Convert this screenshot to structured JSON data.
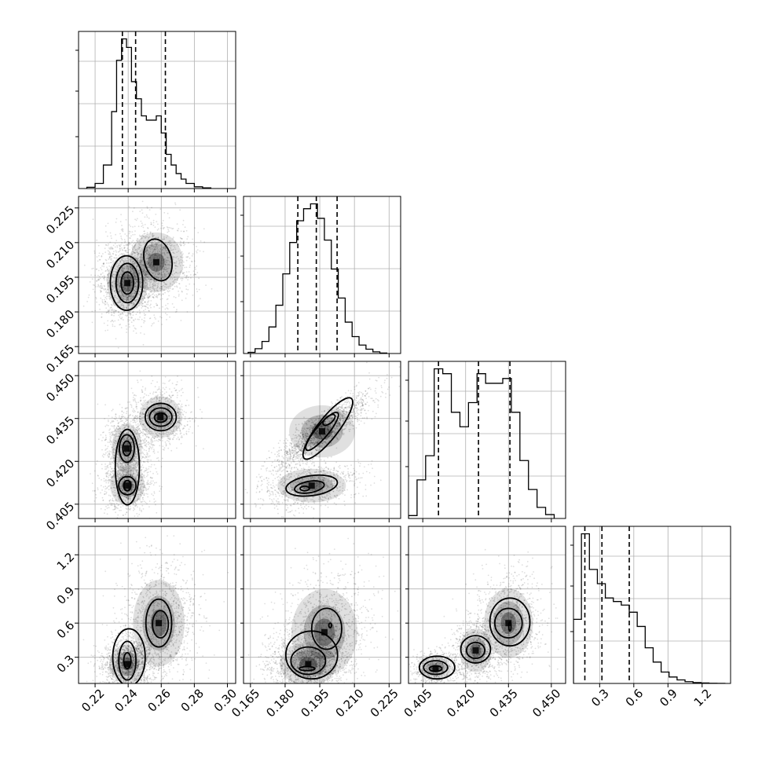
{
  "chart_data": {
    "type": "corner",
    "title": "",
    "parameters": [
      {
        "index": 0,
        "range": [
          0.21,
          0.305
        ],
        "ticks": [
          0.22,
          0.24,
          0.26,
          0.28,
          0.3
        ],
        "tick_labels": [
          "0.22",
          "0.24",
          "0.26",
          "0.28",
          "0.30"
        ],
        "quantiles": [
          0.2365,
          0.2445,
          0.2625
        ],
        "histogram": {
          "bin_edges": [
            0.215,
            0.22,
            0.225,
            0.23,
            0.233,
            0.236,
            0.239,
            0.242,
            0.245,
            0.248,
            0.251,
            0.254,
            0.257,
            0.26,
            0.263,
            0.266,
            0.269,
            0.272,
            0.275,
            0.28,
            0.285,
            0.29
          ],
          "counts": [
            0.3,
            1.2,
            5.5,
            18,
            30,
            35,
            33,
            25,
            21,
            17,
            16,
            16,
            17,
            13,
            8,
            5.5,
            3.5,
            2.2,
            1.2,
            0.4,
            0.15
          ]
        }
      },
      {
        "index": 1,
        "range": [
          0.162,
          0.23
        ],
        "ticks": [
          0.165,
          0.18,
          0.195,
          0.21,
          0.225
        ],
        "tick_labels": [
          "0.165",
          "0.180",
          "0.195",
          "0.210",
          "0.225"
        ],
        "quantiles": [
          0.1855,
          0.1935,
          0.2025
        ],
        "histogram": {
          "bin_edges": [
            0.164,
            0.167,
            0.17,
            0.173,
            0.176,
            0.179,
            0.182,
            0.185,
            0.188,
            0.191,
            0.194,
            0.197,
            0.2,
            0.203,
            0.206,
            0.209,
            0.212,
            0.215,
            0.218,
            0.221,
            0.224
          ],
          "counts": [
            0.5,
            2,
            5,
            11,
            20,
            33,
            46,
            55,
            60,
            62,
            56,
            47,
            35,
            23,
            13,
            7,
            3.5,
            1.8,
            0.7,
            0.2
          ]
        }
      },
      {
        "index": 2,
        "range": [
          0.4,
          0.455
        ],
        "ticks": [
          0.405,
          0.42,
          0.435,
          0.45
        ],
        "tick_labels": [
          "0.405",
          "0.420",
          "0.435",
          "0.450"
        ],
        "quantiles": [
          0.4105,
          0.4245,
          0.4355
        ],
        "histogram": {
          "bin_edges": [
            0.4,
            0.403,
            0.406,
            0.409,
            0.412,
            0.415,
            0.418,
            0.421,
            0.424,
            0.427,
            0.43,
            0.433,
            0.436,
            0.439,
            0.442,
            0.445,
            0.448,
            0.451
          ],
          "counts": [
            0.6,
            8,
            13,
            31,
            30,
            22,
            19,
            24,
            30,
            28,
            28,
            29,
            22,
            12,
            6,
            2.3,
            0.8
          ]
        }
      },
      {
        "index": 3,
        "range": [
          0.07,
          1.45
        ],
        "ticks": [
          0.3,
          0.6,
          0.9,
          1.2
        ],
        "tick_labels": [
          "0.3",
          "0.6",
          "0.9",
          "1.2"
        ],
        "quantiles": [
          0.17,
          0.32,
          0.56
        ],
        "histogram": {
          "bin_edges": [
            0.07,
            0.14,
            0.21,
            0.28,
            0.35,
            0.42,
            0.49,
            0.56,
            0.63,
            0.7,
            0.77,
            0.84,
            0.91,
            0.98,
            1.05,
            1.12,
            1.19,
            1.26,
            1.33,
            1.4
          ],
          "counts": [
            9,
            21,
            16,
            14,
            12,
            11.5,
            11,
            10,
            8,
            5,
            3,
            1.6,
            0.9,
            0.5,
            0.25,
            0.12,
            0.06,
            0.03,
            0.01
          ]
        }
      }
    ],
    "pairs": [
      {
        "x_param": 0,
        "y_param": 1,
        "clusters": [
          {
            "cx": 0.2395,
            "cy": 0.1925,
            "sx": 0.0065,
            "sy": 0.0064,
            "rho": 0.0,
            "weight": 0.58
          },
          {
            "cx": 0.257,
            "cy": 0.2015,
            "sx": 0.0085,
            "sy": 0.0068,
            "rho": -0.15,
            "weight": 0.42
          }
        ],
        "contour_levels": [
          [
            {
              "cx": 0.2395,
              "cy": 0.1925,
              "rx": 0.0038,
              "ry": 0.0048,
              "rot": 0
            }
          ],
          [
            {
              "cx": 0.2395,
              "cy": 0.1925,
              "rx": 0.0068,
              "ry": 0.0085,
              "rot": 0
            }
          ],
          [
            {
              "cx": 0.239,
              "cy": 0.1925,
              "rx": 0.0098,
              "ry": 0.0118,
              "rot": 0
            },
            {
              "cx": 0.258,
              "cy": 0.2025,
              "rx": 0.0082,
              "ry": 0.0092,
              "rot": -15
            }
          ]
        ]
      },
      {
        "x_param": 0,
        "y_param": 2,
        "clusters": [
          {
            "cx": 0.2392,
            "cy": 0.4245,
            "sx": 0.0048,
            "sy": 0.0046,
            "rho": 0.0,
            "weight": 0.35
          },
          {
            "cx": 0.2395,
            "cy": 0.4115,
            "sx": 0.0055,
            "sy": 0.0035,
            "rho": 0.0,
            "weight": 0.32
          },
          {
            "cx": 0.2595,
            "cy": 0.4355,
            "sx": 0.0068,
            "sy": 0.0038,
            "rho": 0.0,
            "weight": 0.33
          }
        ],
        "contour_levels": [
          [
            {
              "cx": 0.2392,
              "cy": 0.4245,
              "rx": 0.0025,
              "ry": 0.0026,
              "rot": 0
            },
            {
              "cx": 0.2395,
              "cy": 0.4115,
              "rx": 0.0022,
              "ry": 0.0018,
              "rot": 0
            },
            {
              "cx": 0.2597,
              "cy": 0.4353,
              "rx": 0.0038,
              "ry": 0.0016,
              "rot": 0
            }
          ],
          [
            {
              "cx": 0.2392,
              "cy": 0.4245,
              "rx": 0.0045,
              "ry": 0.0048,
              "rot": 0
            },
            {
              "cx": 0.2395,
              "cy": 0.4115,
              "rx": 0.0052,
              "ry": 0.0032,
              "rot": 0
            },
            {
              "cx": 0.2597,
              "cy": 0.4355,
              "rx": 0.0068,
              "ry": 0.0032,
              "rot": 0
            }
          ],
          [
            {
              "cx": 0.2395,
              "cy": 0.418,
              "rx": 0.0073,
              "ry": 0.0132,
              "rot": 0
            },
            {
              "cx": 0.2597,
              "cy": 0.4355,
              "rx": 0.0094,
              "ry": 0.0048,
              "rot": 0
            }
          ]
        ]
      },
      {
        "x_param": 1,
        "y_param": 2,
        "clusters": [
          {
            "cx": 0.196,
            "cy": 0.4305,
            "sx": 0.0075,
            "sy": 0.0048,
            "rho": 0.88,
            "weight": 0.68
          },
          {
            "cx": 0.1915,
            "cy": 0.4115,
            "sx": 0.0078,
            "sy": 0.0031,
            "rho": 0.3,
            "weight": 0.32
          }
        ],
        "contour_levels": [
          [
            {
              "cx": 0.199,
              "cy": 0.4345,
              "rx": 0.0032,
              "ry": 0.0012,
              "rot": -40
            },
            {
              "cx": 0.1885,
              "cy": 0.4105,
              "rx": 0.002,
              "ry": 0.0008,
              "rot": 0
            }
          ],
          [
            {
              "cx": 0.196,
              "cy": 0.4305,
              "rx": 0.0105,
              "ry": 0.0022,
              "rot": -50
            },
            {
              "cx": 0.1905,
              "cy": 0.411,
              "rx": 0.0065,
              "ry": 0.002,
              "rot": -10
            }
          ],
          [
            {
              "cx": 0.1985,
              "cy": 0.4315,
              "rx": 0.0165,
              "ry": 0.0036,
              "rot": -52
            },
            {
              "cx": 0.1915,
              "cy": 0.4115,
              "rx": 0.0112,
              "ry": 0.0035,
              "rot": -8
            }
          ]
        ]
      },
      {
        "x_param": 0,
        "y_param": 3,
        "clusters": [
          {
            "cx": 0.2395,
            "cy": 0.24,
            "sx": 0.0058,
            "sy": 0.09,
            "rho": 0.1,
            "weight": 0.55
          },
          {
            "cx": 0.2585,
            "cy": 0.6,
            "sx": 0.0082,
            "sy": 0.2,
            "rho": 0.1,
            "weight": 0.45
          }
        ],
        "contour_levels": [
          [
            {
              "cx": 0.2395,
              "cy": 0.27,
              "rx": 0.0022,
              "ry": 0.07,
              "rot": 0
            }
          ],
          [
            {
              "cx": 0.2395,
              "cy": 0.27,
              "rx": 0.0052,
              "ry": 0.17,
              "rot": 0
            },
            {
              "cx": 0.2595,
              "cy": 0.59,
              "rx": 0.0048,
              "ry": 0.12,
              "rot": 0
            }
          ],
          [
            {
              "cx": 0.2405,
              "cy": 0.3,
              "rx": 0.0098,
              "ry": 0.25,
              "rot": 0
            },
            {
              "cx": 0.2585,
              "cy": 0.6,
              "rx": 0.0078,
              "ry": 0.21,
              "rot": 0
            }
          ]
        ]
      },
      {
        "x_param": 1,
        "y_param": 3,
        "clusters": [
          {
            "cx": 0.19,
            "cy": 0.24,
            "sx": 0.0065,
            "sy": 0.1,
            "rho": 0.1,
            "weight": 0.55
          },
          {
            "cx": 0.197,
            "cy": 0.52,
            "sx": 0.0075,
            "sy": 0.2,
            "rho": 0.2,
            "weight": 0.45
          }
        ],
        "contour_levels": [
          [
            {
              "cx": 0.1895,
              "cy": 0.2,
              "rx": 0.0034,
              "ry": 0.018,
              "rot": 0
            }
          ],
          [
            {
              "cx": 0.19,
              "cy": 0.27,
              "rx": 0.0075,
              "ry": 0.12,
              "rot": 0
            },
            {
              "cx": 0.1995,
              "cy": 0.58,
              "rx": 0.0006,
              "ry": 0.02,
              "rot": 0
            }
          ],
          [
            {
              "cx": 0.1915,
              "cy": 0.32,
              "rx": 0.0112,
              "ry": 0.21,
              "rot": 0
            },
            {
              "cx": 0.198,
              "cy": 0.55,
              "rx": 0.0065,
              "ry": 0.18,
              "rot": 0
            }
          ]
        ]
      },
      {
        "x_param": 2,
        "y_param": 3,
        "clusters": [
          {
            "cx": 0.4095,
            "cy": 0.2,
            "sx": 0.0028,
            "sy": 0.055,
            "rho": 0.1,
            "weight": 0.28
          },
          {
            "cx": 0.4235,
            "cy": 0.36,
            "sx": 0.003,
            "sy": 0.1,
            "rho": 0.1,
            "weight": 0.32
          },
          {
            "cx": 0.435,
            "cy": 0.6,
            "sx": 0.0045,
            "sy": 0.16,
            "rho": 0.1,
            "weight": 0.4
          }
        ],
        "contour_levels": [
          [
            {
              "cx": 0.4095,
              "cy": 0.2,
              "rx": 0.0022,
              "ry": 0.025,
              "rot": 0
            },
            {
              "cx": 0.4355,
              "cy": 0.57,
              "rx": 0.0004,
              "ry": 0.04,
              "rot": 0
            }
          ],
          [
            {
              "cx": 0.4095,
              "cy": 0.21,
              "rx": 0.0042,
              "ry": 0.06,
              "rot": 0
            },
            {
              "cx": 0.4235,
              "cy": 0.36,
              "rx": 0.0032,
              "ry": 0.07,
              "rot": 0
            },
            {
              "cx": 0.435,
              "cy": 0.6,
              "rx": 0.0048,
              "ry": 0.13,
              "rot": 0
            }
          ],
          [
            {
              "cx": 0.41,
              "cy": 0.21,
              "rx": 0.0062,
              "ry": 0.1,
              "rot": 0
            },
            {
              "cx": 0.4235,
              "cy": 0.37,
              "rx": 0.0052,
              "ry": 0.12,
              "rot": 0
            },
            {
              "cx": 0.4355,
              "cy": 0.61,
              "rx": 0.007,
              "ry": 0.21,
              "rot": 0
            }
          ]
        ]
      }
    ],
    "grid": true,
    "legend": "none",
    "xlabel": "",
    "ylabel": ""
  }
}
